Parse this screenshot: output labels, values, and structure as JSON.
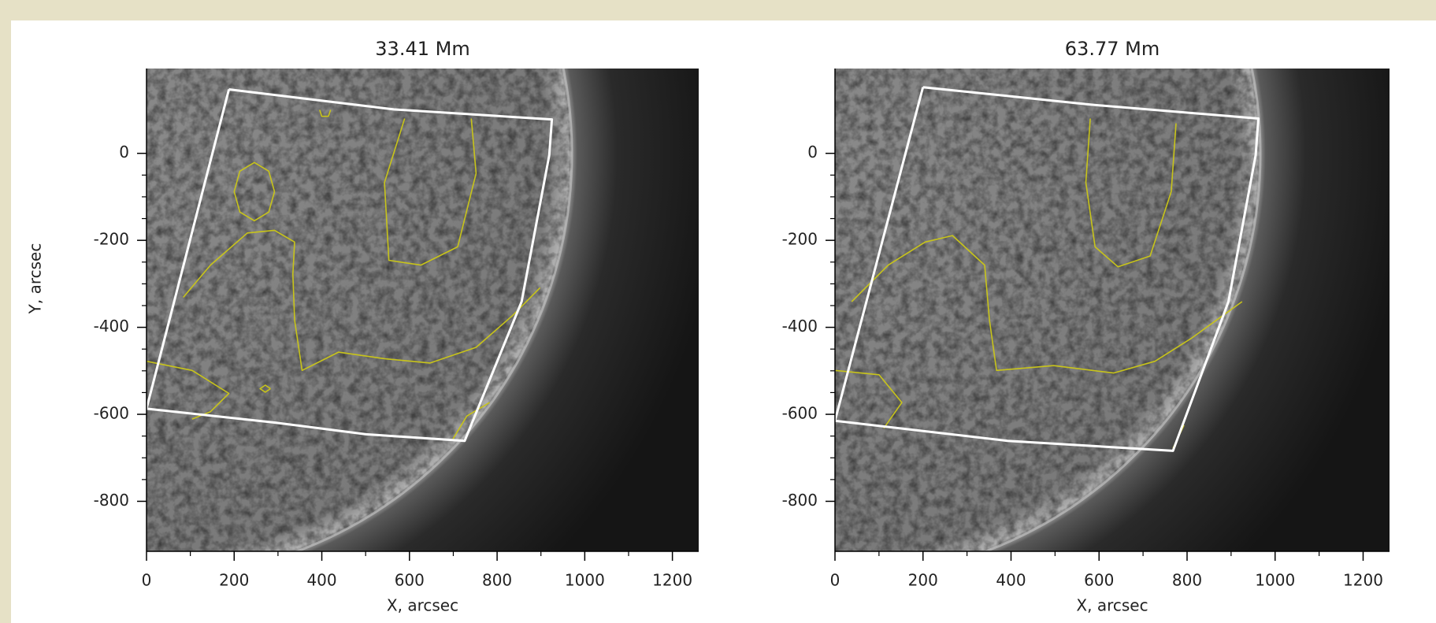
{
  "chart_data": [
    {
      "type": "image",
      "title": "33.41 Mm",
      "x_label": "X, arcsec",
      "y_label": "Y, arcsec",
      "xlim": [
        0,
        1260
      ],
      "ylim": [
        -915,
        195
      ],
      "xticks": [
        0,
        200,
        400,
        600,
        800,
        1000,
        1200
      ],
      "yticks": [
        -800,
        -600,
        -400,
        -200,
        0
      ],
      "region": {
        "color": "#ffffff",
        "x": [
          188,
          564,
          925,
          919,
          856,
          726,
          501,
          292,
          0,
          188
        ],
        "y": [
          147,
          101,
          78,
          -4,
          -341,
          -661,
          -646,
          -619,
          -587,
          147
        ]
      },
      "contours": {
        "color": "#c8c41a",
        "lines": [
          {
            "x": [
              292,
              279,
              246,
              213,
              200,
              213,
              246,
              279,
              292
            ],
            "y": [
              -88,
              -41,
              -21,
              -41,
              -88,
              -135,
              -155,
              -135,
              -88
            ]
          },
          {
            "x": [
              84,
              146,
              230,
              292,
              338,
              334,
              338,
              355,
              438,
              543,
              647,
              752,
              835,
              898
            ],
            "y": [
              -331,
              -257,
              -183,
              -177,
              -204,
              -278,
              -383,
              -499,
              -457,
              -472,
              -482,
              -446,
              -373,
              -309
            ]
          },
          {
            "x": [
              589,
              543,
              553,
              626,
              710,
              752,
              741
            ],
            "y": [
              80,
              -67,
              -246,
              -257,
              -215,
              -46,
              80
            ]
          },
          {
            "x": [
              0,
              104,
              188,
              146,
              104
            ],
            "y": [
              -478,
              -499,
              -552,
              -594,
              -611
            ]
          },
          {
            "x": [
              283,
              271,
              259,
              271,
              283
            ],
            "y": [
              -541,
              -533,
              -541,
              -549,
              -541
            ]
          },
          {
            "x": [
              699,
              731,
              783
            ],
            "y": [
              -657,
              -604,
              -573
            ]
          },
          {
            "x": [
              395,
              400,
              415,
              420
            ],
            "y": [
              100,
              85,
              85,
              100
            ]
          }
        ]
      }
    },
    {
      "type": "image",
      "title": "63.77 Mm",
      "x_label": "X, arcsec",
      "xlim": [
        0,
        1260
      ],
      "ylim": [
        -915,
        195
      ],
      "xticks": [
        0,
        200,
        400,
        600,
        800,
        1000,
        1200
      ],
      "yticks": [
        -800,
        -600,
        -400,
        -200,
        0
      ],
      "region": {
        "color": "#ffffff",
        "x": [
          200,
          580,
          962,
          956,
          894,
          768,
          392,
          0,
          200
        ],
        "y": [
          152,
          112,
          80,
          -4,
          -341,
          -684,
          -661,
          -615,
          152
        ]
      },
      "contours": {
        "color": "#c8c41a",
        "lines": [
          {
            "x": [
              38,
              121,
              205,
              267,
              340,
              351,
              367,
              497,
              633,
              727,
              810,
              925
            ],
            "y": [
              -341,
              -257,
              -204,
              -189,
              -257,
              -383,
              -499,
              -488,
              -505,
              -478,
              -425,
              -341
            ]
          },
          {
            "x": [
              580,
              570,
              591,
              643,
              716,
              764,
              775
            ],
            "y": [
              80,
              -67,
              -215,
              -261,
              -236,
              -88,
              69
            ]
          },
          {
            "x": [
              0,
              100,
              152,
              111
            ],
            "y": [
              -499,
              -509,
              -573,
              -632
            ]
          },
          {
            "x": [
              768,
              793
            ],
            "y": [
              -678,
              -625
            ]
          }
        ]
      }
    }
  ]
}
